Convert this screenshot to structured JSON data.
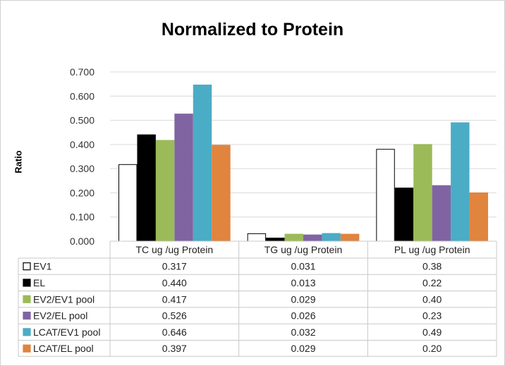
{
  "chart_data": {
    "type": "bar",
    "title": "Normalized to Protein",
    "ylabel": "Ratio",
    "xlabel": "",
    "ylim": [
      0,
      0.7
    ],
    "yticks": [
      "0.000",
      "0.100",
      "0.200",
      "0.300",
      "0.400",
      "0.500",
      "0.600",
      "0.700"
    ],
    "grid": true,
    "legend": "data-table",
    "categories": [
      "TC ug /ug Protein",
      "TG ug /ug Protein",
      "PL ug /ug Protein"
    ],
    "series": [
      {
        "name": "EV1",
        "values": [
          0.317,
          0.031,
          0.38
        ],
        "labels": [
          "0.317",
          "0.031",
          "0.38"
        ],
        "color": "#ffffff",
        "stroke": "#000000"
      },
      {
        "name": "EL",
        "values": [
          0.44,
          0.013,
          0.22
        ],
        "labels": [
          "0.440",
          "0.013",
          "0.22"
        ],
        "color": "#000000",
        "stroke": "#000000"
      },
      {
        "name": "EV2/EV1 pool",
        "values": [
          0.417,
          0.029,
          0.4
        ],
        "labels": [
          "0.417",
          "0.029",
          "0.40"
        ],
        "color": "#9bbb59",
        "stroke": "#9bbb59"
      },
      {
        "name": "EV2/EL pool",
        "values": [
          0.526,
          0.026,
          0.23
        ],
        "labels": [
          "0.526",
          "0.026",
          "0.23"
        ],
        "color": "#8064a2",
        "stroke": "#8064a2"
      },
      {
        "name": "LCAT/EV1 pool",
        "values": [
          0.646,
          0.032,
          0.49
        ],
        "labels": [
          "0.646",
          "0.032",
          "0.49"
        ],
        "color": "#4bacc6",
        "stroke": "#4bacc6"
      },
      {
        "name": "LCAT/EL pool",
        "values": [
          0.397,
          0.029,
          0.2
        ],
        "labels": [
          "0.397",
          "0.029",
          "0.20"
        ],
        "color": "#e0843e",
        "stroke": "#e0843e"
      }
    ]
  }
}
